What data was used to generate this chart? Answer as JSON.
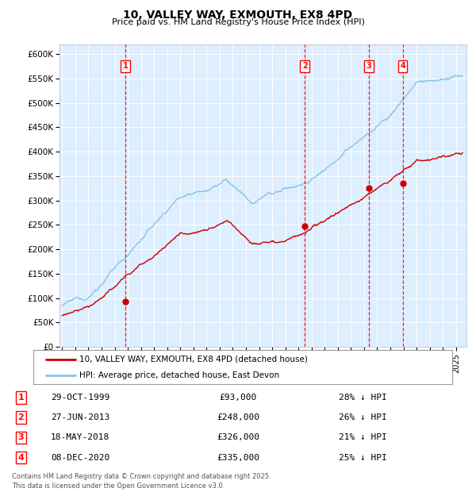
{
  "title": "10, VALLEY WAY, EXMOUTH, EX8 4PD",
  "subtitle": "Price paid vs. HM Land Registry's House Price Index (HPI)",
  "hpi_color": "#88c4e8",
  "price_color": "#cc0000",
  "plot_bg": "#ddeeff",
  "ylim": [
    0,
    620000
  ],
  "yticks": [
    0,
    50000,
    100000,
    150000,
    200000,
    250000,
    300000,
    350000,
    400000,
    450000,
    500000,
    550000,
    600000
  ],
  "xlim_start": 1994.8,
  "xlim_end": 2025.8,
  "transactions": [
    {
      "label": "1",
      "date_str": "29-OCT-1999",
      "price": 93000,
      "pct": "28%",
      "x": 1999.83
    },
    {
      "label": "2",
      "date_str": "27-JUN-2013",
      "price": 248000,
      "pct": "26%",
      "x": 2013.49
    },
    {
      "label": "3",
      "date_str": "18-MAY-2018",
      "price": 326000,
      "pct": "21%",
      "x": 2018.38
    },
    {
      "label": "4",
      "date_str": "08-DEC-2020",
      "price": 335000,
      "pct": "25%",
      "x": 2020.94
    }
  ],
  "legend_line1": "10, VALLEY WAY, EXMOUTH, EX8 4PD (detached house)",
  "legend_line2": "HPI: Average price, detached house, East Devon",
  "footer": "Contains HM Land Registry data © Crown copyright and database right 2025.\nThis data is licensed under the Open Government Licence v3.0."
}
